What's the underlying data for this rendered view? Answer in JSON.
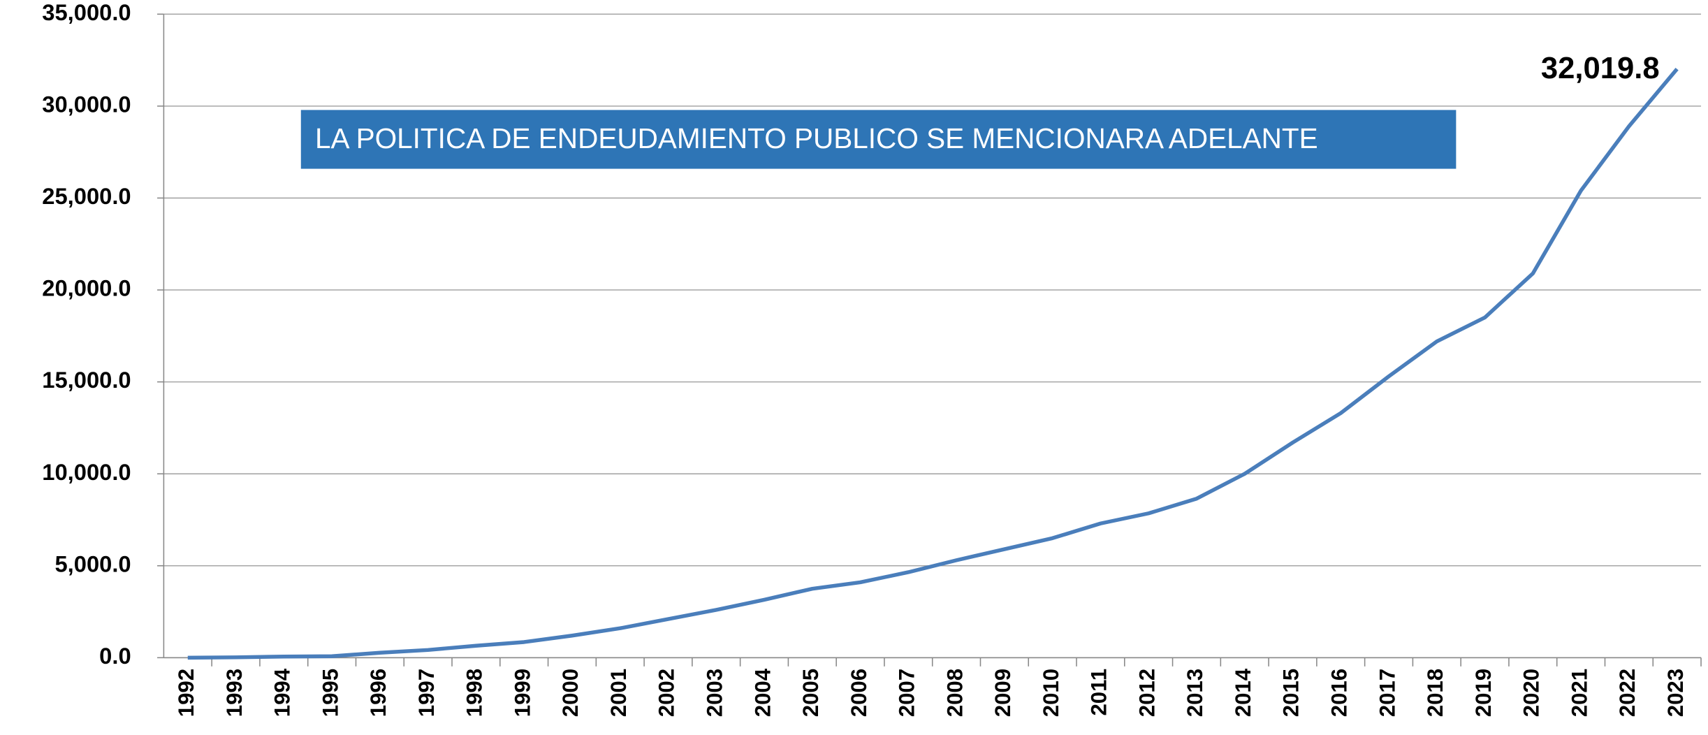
{
  "chart_data": {
    "type": "line",
    "banner": "LA POLITICA DE ENDEUDAMIENTO PUBLICO SE MENCIONARA ADELANTE",
    "annotation": "32,019.8",
    "categories": [
      "1992",
      "1993",
      "1994",
      "1995",
      "1996",
      "1997",
      "1998",
      "1999",
      "2000",
      "2001",
      "2002",
      "2003",
      "2004",
      "2005",
      "2006",
      "2007",
      "2008",
      "2009",
      "2010",
      "2011",
      "2012",
      "2013",
      "2014",
      "2015",
      "2016",
      "2017",
      "2018",
      "2019",
      "2020",
      "2021",
      "2022",
      "2023"
    ],
    "values": [
      0,
      20,
      60,
      80,
      270,
      420,
      650,
      850,
      1200,
      1600,
      2100,
      2600,
      3150,
      3750,
      4100,
      4650,
      5300,
      5900,
      6500,
      7300,
      7850,
      8650,
      10000,
      11700,
      13300,
      15300,
      17200,
      18500,
      20900,
      25400,
      28900,
      32019.8
    ],
    "color": "#4a7ebb",
    "ylim": [
      0,
      35000
    ],
    "yticks": [
      {
        "value": 0,
        "label": "0.0"
      },
      {
        "value": 5000,
        "label": "5,000.0"
      },
      {
        "value": 10000,
        "label": "10,000.0"
      },
      {
        "value": 15000,
        "label": "15,000.0"
      },
      {
        "value": 20000,
        "label": "20,000.0"
      },
      {
        "value": 25000,
        "label": "25,000.0"
      },
      {
        "value": 30000,
        "label": "30,000.0"
      },
      {
        "value": 35000,
        "label": "35,000.0"
      }
    ],
    "grid": true
  }
}
